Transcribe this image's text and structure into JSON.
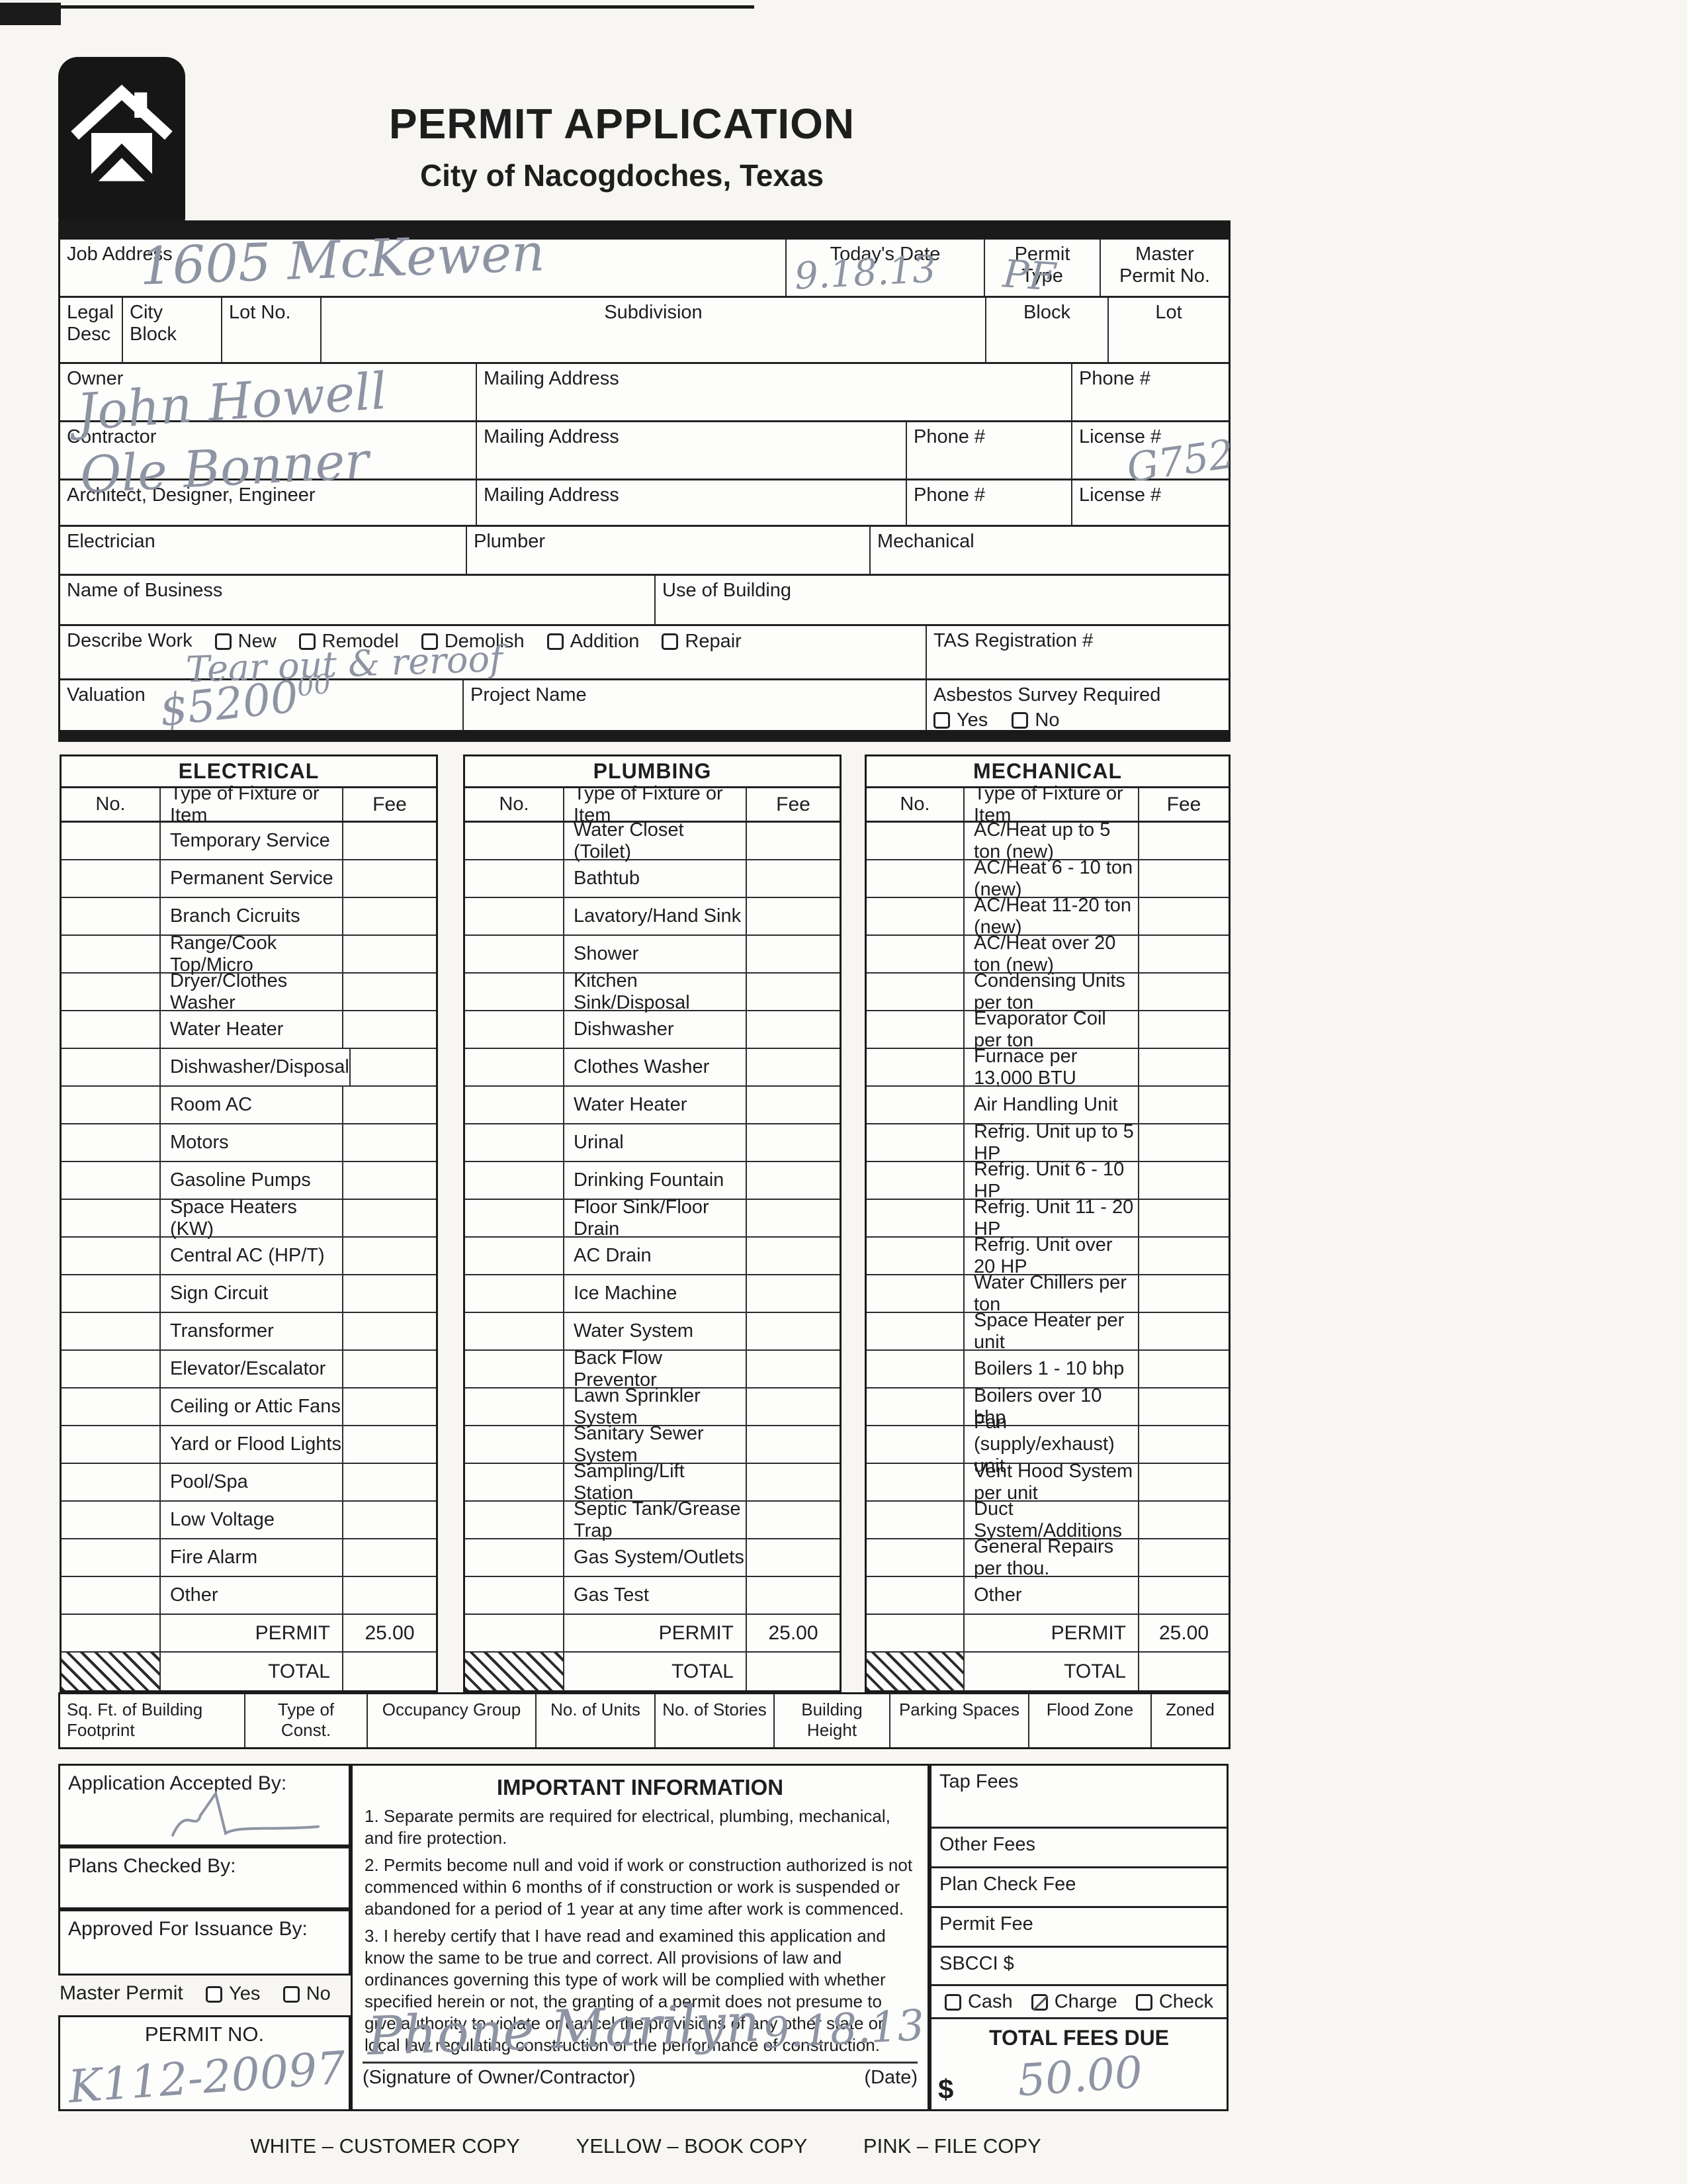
{
  "header": {
    "title": "PERMIT APPLICATION",
    "subtitle": "City of Nacogdoches, Texas"
  },
  "top_form": {
    "job_address": {
      "label": "Job Address",
      "value": "1605 McKewen"
    },
    "todays_date": {
      "label": "Today's Date",
      "value": "9.18.13"
    },
    "permit_type": {
      "label": "Permit Type",
      "value": "PF"
    },
    "master_permit_no": {
      "label": "Master Permit No."
    },
    "legal_desc": "Legal Desc",
    "city_block": "City Block",
    "lot_no": "Lot No.",
    "subdivision": "Subdivision",
    "block": "Block",
    "lot": "Lot",
    "mailing_address": "Mailing Address",
    "phone": "Phone #",
    "license": "License #",
    "owner": {
      "label": "Owner",
      "value": "John Howell"
    },
    "contractor": {
      "label": "Contractor",
      "value": "Ole Bonner",
      "license_value": "G752"
    },
    "architect": {
      "label": "Architect, Designer, Engineer"
    },
    "electrician": "Electrician",
    "plumber": "Plumber",
    "mechanical": "Mechanical",
    "name_of_business": "Name of Business",
    "use_of_building": "Use of Building",
    "describe_work": {
      "label": "Describe Work",
      "options": [
        "New",
        "Remodel",
        "Demolish",
        "Addition",
        "Repair"
      ],
      "note": "Tear out & reroof"
    },
    "tas": "TAS Registration #",
    "valuation": {
      "label": "Valuation",
      "value": "$5200",
      "cents": "00"
    },
    "project_name": "Project Name",
    "asbestos": {
      "label": "Asbestos Survey Required",
      "yes": "Yes",
      "no": "No"
    }
  },
  "fee_tables": [
    {
      "title": "ELECTRICAL",
      "headers": [
        "No.",
        "Type of Fixture or Item",
        "Fee"
      ],
      "items": [
        "Temporary Service",
        "Permanent Service",
        "Branch Cicruits",
        "Range/Cook Top/Micro",
        "Dryer/Clothes Washer",
        "Water Heater",
        "Dishwasher/Disposal",
        "Room AC",
        "Motors",
        "Gasoline Pumps",
        "Space Heaters (KW)",
        "Central AC (HP/T)",
        "Sign Circuit",
        "Transformer",
        "Elevator/Escalator",
        "Ceiling or Attic Fans",
        "Yard or Flood Lights",
        "Pool/Spa",
        "Low Voltage",
        "Fire Alarm",
        "Other"
      ],
      "permit_label": "PERMIT",
      "permit_fee": "25.00",
      "total_label": "TOTAL"
    },
    {
      "title": "PLUMBING",
      "headers": [
        "No.",
        "Type of Fixture or Item",
        "Fee"
      ],
      "items": [
        "Water Closet (Toilet)",
        "Bathtub",
        "Lavatory/Hand Sink",
        "Shower",
        "Kitchen Sink/Disposal",
        "Dishwasher",
        "Clothes Washer",
        "Water Heater",
        "Urinal",
        "Drinking Fountain",
        "Floor Sink/Floor Drain",
        "AC Drain",
        "Ice Machine",
        "Water System",
        "Back Flow Preventor",
        "Lawn Sprinkler System",
        "Sanitary Sewer System",
        "Sampling/Lift Station",
        "Septic Tank/Grease Trap",
        "Gas System/Outlets",
        "Gas Test"
      ],
      "permit_label": "PERMIT",
      "permit_fee": "25.00",
      "total_label": "TOTAL"
    },
    {
      "title": "MECHANICAL",
      "headers": [
        "No.",
        "Type of Fixture or Item",
        "Fee"
      ],
      "items": [
        "AC/Heat up to 5 ton (new)",
        "AC/Heat 6 - 10 ton (new)",
        "AC/Heat 11-20 ton (new)",
        "AC/Heat over 20 ton (new)",
        "Condensing Units per ton",
        "Evaporator Coil per ton",
        "Furnace per 13,000 BTU",
        "Air Handling Unit",
        "Refrig. Unit up to 5 HP",
        "Refrig. Unit 6 - 10 HP",
        "Refrig. Unit 11 - 20 HP",
        "Refrig. Unit over 20 HP",
        "Water Chillers per ton",
        "Space Heater per unit",
        "Boilers 1 - 10 bhp",
        "Boilers over 10 bhp",
        "Fan (supply/exhaust) unit",
        "Vent Hood System per unit",
        "Duct System/Additions",
        "General Repairs per thou.",
        "Other"
      ],
      "permit_label": "PERMIT",
      "permit_fee": "25.00",
      "total_label": "TOTAL"
    }
  ],
  "footprint_row": [
    "Sq. Ft. of Building Footprint",
    "Type of Const.",
    "Occupancy Group",
    "No. of Units",
    "No. of Stories",
    "Building Height",
    "Parking Spaces",
    "Flood Zone",
    "Zoned"
  ],
  "bottom": {
    "accepted_by": "Application Accepted By:",
    "plans_checked_by": "Plans Checked By:",
    "approved_by": "Approved For Issuance By:",
    "master_permit": {
      "label": "Master Permit",
      "yes": "Yes",
      "no": "No"
    },
    "permit_no": {
      "label": "PERMIT NO.",
      "value": "K112-20097"
    },
    "important": {
      "title": "IMPORTANT INFORMATION",
      "p1": "1.  Separate permits are required for electrical, plumbing, mechanical, and fire protection.",
      "p2": "2.  Permits become null and void if work or construction authorized is not commenced within 6 months of if construction or work is suspended or abandoned for a period of 1 year at any time after work is commenced.",
      "p3": "3.  I hereby certify that I have read and examined this application and know the same to be true and correct.  All provisions of law and ordinances governing this type of work will be complied with whether specified herein or not, the granting of a permit does not presume to give authority to violate or cancel the provisions of any other state or local law regulating construction or the performance of construction."
    },
    "signature": {
      "value": "Phone Marilyn",
      "date_value": "9.18.13",
      "sig_label": "(Signature of Owner/Contractor)",
      "date_label": "(Date)"
    },
    "fees": {
      "tap": "Tap Fees",
      "other": "Other Fees",
      "plan_check": "Plan Check Fee",
      "permit": "Permit Fee",
      "sbcci": "SBCCI $",
      "payment": {
        "cash": "Cash",
        "charge": "Charge",
        "check": "Check",
        "selected": "Charge"
      },
      "total_due": {
        "label": "TOTAL FEES DUE",
        "currency": "$",
        "value": "50.00"
      }
    }
  },
  "footer": {
    "c1": "WHITE – CUSTOMER COPY",
    "c2": "YELLOW – BOOK COPY",
    "c3": "PINK – FILE COPY"
  }
}
